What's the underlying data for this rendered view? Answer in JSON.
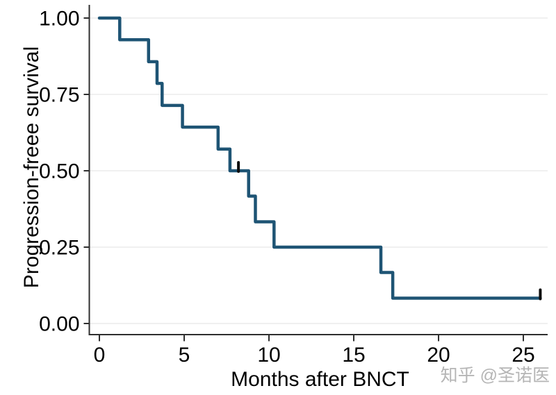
{
  "chart_data": {
    "type": "line",
    "subtype": "kaplan-meier-step",
    "title": "",
    "xlabel": "Months after BNCT",
    "ylabel": "Progression-freee survival",
    "xlim": [
      0,
      26.5
    ],
    "ylim": [
      0,
      1.0
    ],
    "x_ticks": [
      {
        "v": 0,
        "label": "0"
      },
      {
        "v": 5,
        "label": "5"
      },
      {
        "v": 10,
        "label": "10"
      },
      {
        "v": 15,
        "label": "15"
      },
      {
        "v": 20,
        "label": "20"
      },
      {
        "v": 25,
        "label": "25"
      }
    ],
    "y_ticks": [
      {
        "v": 1.0,
        "label": "1.00"
      },
      {
        "v": 0.75,
        "label": "0.75"
      },
      {
        "v": 0.5,
        "label": "0.50"
      },
      {
        "v": 0.25,
        "label": "0.25"
      },
      {
        "v": 0.0,
        "label": "0.00"
      }
    ],
    "grid": "horizontal",
    "legend": "none",
    "series": [
      {
        "name": "progression-free-survival",
        "color": "#1e5474",
        "steps": [
          {
            "t": 0,
            "s": 1.0
          },
          {
            "t": 1.2,
            "s": 0.929
          },
          {
            "t": 2.9,
            "s": 0.857
          },
          {
            "t": 3.4,
            "s": 0.786
          },
          {
            "t": 3.7,
            "s": 0.714
          },
          {
            "t": 4.9,
            "s": 0.643
          },
          {
            "t": 7.0,
            "s": 0.571
          },
          {
            "t": 7.7,
            "s": 0.5
          },
          {
            "t": 8.8,
            "s": 0.417
          },
          {
            "t": 9.2,
            "s": 0.333
          },
          {
            "t": 10.3,
            "s": 0.25
          },
          {
            "t": 16.6,
            "s": 0.167
          },
          {
            "t": 17.3,
            "s": 0.083
          }
        ],
        "end_time": 26.0,
        "censor_marks": [
          {
            "t": 8.2,
            "s": 0.5
          },
          {
            "t": 26.0,
            "s": 0.083
          }
        ]
      }
    ]
  },
  "watermark": {
    "text": "知乎 @圣诺医"
  },
  "colors": {
    "curve": "#1e5474",
    "axis": "#2e2e2e",
    "grid": "#ececec",
    "censor": "#0d0d0d",
    "text": "#000000",
    "watermark": "#b5b5b5"
  }
}
